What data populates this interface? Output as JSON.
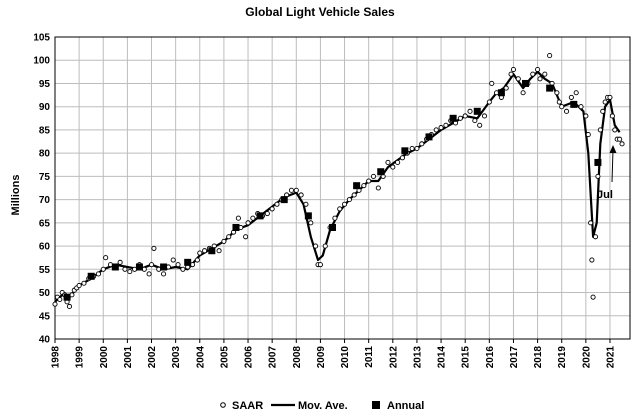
{
  "chart_data": {
    "type": "line",
    "title": "Global Light Vehicle Sales",
    "xlabel": "",
    "ylabel": "Millions",
    "xlim": [
      1998,
      2021.83
    ],
    "ylim": [
      40,
      105
    ],
    "yticks": [
      40,
      45,
      50,
      55,
      60,
      65,
      70,
      75,
      80,
      85,
      90,
      95,
      100,
      105
    ],
    "xticks": [
      1998,
      1999,
      2000,
      2001,
      2002,
      2003,
      2004,
      2005,
      2006,
      2007,
      2008,
      2009,
      2010,
      2011,
      2012,
      2013,
      2014,
      2015,
      2016,
      2017,
      2018,
      2019,
      2020,
      2021
    ],
    "xtick_labels": [
      "1998",
      "1999",
      "2000",
      "2001",
      "2002",
      "2003",
      "2004",
      "2005",
      "2006",
      "2007",
      "2008",
      "2009",
      "2010",
      "2011",
      "2012",
      "2013",
      "2014",
      "2015",
      "2016",
      "2017",
      "2018",
      "2019",
      "2020",
      "2021"
    ],
    "grid": true,
    "legend_position": "bottom",
    "colors": {
      "line": "#000000",
      "grid": "#bdbdbd",
      "marker": "#000000"
    },
    "annotation": {
      "text": "Jul",
      "x": 2021.5,
      "y": 83
    },
    "series": [
      {
        "name": "SAAR",
        "style": "open-circle",
        "points": [
          [
            1998.0,
            47.5
          ],
          [
            1998.1,
            49
          ],
          [
            1998.2,
            48.5
          ],
          [
            1998.3,
            50
          ],
          [
            1998.4,
            49.5
          ],
          [
            1998.5,
            48
          ],
          [
            1998.6,
            47
          ],
          [
            1998.7,
            49.5
          ],
          [
            1998.8,
            50.5
          ],
          [
            1998.9,
            51
          ],
          [
            1999.0,
            51.5
          ],
          [
            1999.2,
            52
          ],
          [
            1999.4,
            53
          ],
          [
            1999.6,
            53.5
          ],
          [
            1999.8,
            54
          ],
          [
            2000.0,
            55
          ],
          [
            2000.1,
            57.5
          ],
          [
            2000.3,
            56
          ],
          [
            2000.5,
            55.5
          ],
          [
            2000.7,
            56.5
          ],
          [
            2000.9,
            55
          ],
          [
            2001.1,
            54.5
          ],
          [
            2001.3,
            55
          ],
          [
            2001.5,
            56
          ],
          [
            2001.7,
            55
          ],
          [
            2001.9,
            54
          ],
          [
            2002.0,
            56
          ],
          [
            2002.1,
            59.5
          ],
          [
            2002.3,
            55
          ],
          [
            2002.5,
            54
          ],
          [
            2002.7,
            55.5
          ],
          [
            2002.9,
            57
          ],
          [
            2003.1,
            56
          ],
          [
            2003.3,
            55
          ],
          [
            2003.5,
            55.5
          ],
          [
            2003.7,
            56
          ],
          [
            2003.9,
            57
          ],
          [
            2004.0,
            58.5
          ],
          [
            2004.2,
            59
          ],
          [
            2004.4,
            59.5
          ],
          [
            2004.6,
            60
          ],
          [
            2004.8,
            59
          ],
          [
            2005.0,
            61
          ],
          [
            2005.2,
            62
          ],
          [
            2005.4,
            63
          ],
          [
            2005.6,
            66
          ],
          [
            2005.7,
            64
          ],
          [
            2005.9,
            62
          ],
          [
            2006.0,
            65
          ],
          [
            2006.2,
            66
          ],
          [
            2006.4,
            67
          ],
          [
            2006.6,
            66.5
          ],
          [
            2006.8,
            67
          ],
          [
            2007.0,
            68
          ],
          [
            2007.2,
            69
          ],
          [
            2007.4,
            70
          ],
          [
            2007.6,
            71
          ],
          [
            2007.8,
            72
          ],
          [
            2008.0,
            72
          ],
          [
            2008.2,
            71
          ],
          [
            2008.4,
            69
          ],
          [
            2008.6,
            65
          ],
          [
            2008.8,
            60
          ],
          [
            2008.9,
            56
          ],
          [
            2009.0,
            56
          ],
          [
            2009.2,
            60
          ],
          [
            2009.4,
            64
          ],
          [
            2009.6,
            66
          ],
          [
            2009.8,
            68
          ],
          [
            2010.0,
            69
          ],
          [
            2010.2,
            70
          ],
          [
            2010.4,
            71
          ],
          [
            2010.6,
            72
          ],
          [
            2010.8,
            73
          ],
          [
            2011.0,
            74
          ],
          [
            2011.2,
            75
          ],
          [
            2011.4,
            72.5
          ],
          [
            2011.6,
            75
          ],
          [
            2011.8,
            78
          ],
          [
            2012.0,
            77
          ],
          [
            2012.2,
            78
          ],
          [
            2012.4,
            79
          ],
          [
            2012.6,
            80
          ],
          [
            2012.8,
            81
          ],
          [
            2013.0,
            81
          ],
          [
            2013.2,
            82
          ],
          [
            2013.4,
            83
          ],
          [
            2013.6,
            84
          ],
          [
            2013.8,
            85
          ],
          [
            2014.0,
            85.5
          ],
          [
            2014.2,
            86
          ],
          [
            2014.4,
            87
          ],
          [
            2014.6,
            86.5
          ],
          [
            2014.8,
            87.5
          ],
          [
            2015.0,
            88
          ],
          [
            2015.2,
            89
          ],
          [
            2015.4,
            87
          ],
          [
            2015.6,
            86
          ],
          [
            2015.8,
            88
          ],
          [
            2016.0,
            91
          ],
          [
            2016.1,
            95
          ],
          [
            2016.3,
            93
          ],
          [
            2016.5,
            92
          ],
          [
            2016.7,
            94
          ],
          [
            2016.9,
            97
          ],
          [
            2017.0,
            98
          ],
          [
            2017.2,
            96
          ],
          [
            2017.4,
            93
          ],
          [
            2017.6,
            95
          ],
          [
            2017.8,
            97
          ],
          [
            2018.0,
            98
          ],
          [
            2018.1,
            96
          ],
          [
            2018.3,
            97
          ],
          [
            2018.5,
            101
          ],
          [
            2018.6,
            95
          ],
          [
            2018.8,
            93
          ],
          [
            2018.9,
            91
          ],
          [
            2019.0,
            90
          ],
          [
            2019.2,
            89
          ],
          [
            2019.4,
            92
          ],
          [
            2019.6,
            93
          ],
          [
            2019.8,
            90
          ],
          [
            2020.0,
            88
          ],
          [
            2020.1,
            84
          ],
          [
            2020.2,
            65
          ],
          [
            2020.25,
            57
          ],
          [
            2020.3,
            49
          ],
          [
            2020.4,
            62
          ],
          [
            2020.5,
            75
          ],
          [
            2020.6,
            85
          ],
          [
            2020.7,
            89
          ],
          [
            2020.8,
            91
          ],
          [
            2020.9,
            92
          ],
          [
            2021.0,
            92
          ],
          [
            2021.1,
            88
          ],
          [
            2021.2,
            85
          ],
          [
            2021.3,
            83
          ],
          [
            2021.4,
            83
          ],
          [
            2021.5,
            82
          ]
        ]
      },
      {
        "name": "Mov. Ave.",
        "style": "line",
        "points": [
          [
            1998.0,
            48
          ],
          [
            1998.3,
            49.5
          ],
          [
            1998.6,
            49
          ],
          [
            1999.0,
            51.5
          ],
          [
            1999.5,
            53
          ],
          [
            2000.0,
            55
          ],
          [
            2000.5,
            56
          ],
          [
            2001.0,
            55.5
          ],
          [
            2001.5,
            55
          ],
          [
            2002.0,
            56
          ],
          [
            2002.5,
            55
          ],
          [
            2003.0,
            55.5
          ],
          [
            2003.5,
            55
          ],
          [
            2004.0,
            58
          ],
          [
            2004.5,
            59.5
          ],
          [
            2005.0,
            61
          ],
          [
            2005.5,
            63.5
          ],
          [
            2006.0,
            64.5
          ],
          [
            2006.5,
            66.5
          ],
          [
            2007.0,
            68.5
          ],
          [
            2007.5,
            70.5
          ],
          [
            2008.0,
            71.5
          ],
          [
            2008.3,
            69
          ],
          [
            2008.6,
            62
          ],
          [
            2008.9,
            57
          ],
          [
            2009.1,
            58
          ],
          [
            2009.4,
            63.5
          ],
          [
            2009.8,
            67.5
          ],
          [
            2010.2,
            70
          ],
          [
            2010.6,
            72
          ],
          [
            2011.0,
            74
          ],
          [
            2011.4,
            74
          ],
          [
            2011.8,
            77
          ],
          [
            2012.2,
            78.5
          ],
          [
            2012.6,
            80
          ],
          [
            2013.0,
            81
          ],
          [
            2013.5,
            83
          ],
          [
            2014.0,
            85
          ],
          [
            2014.5,
            86.5
          ],
          [
            2015.0,
            88
          ],
          [
            2015.5,
            87.5
          ],
          [
            2016.0,
            91
          ],
          [
            2016.3,
            93
          ],
          [
            2016.6,
            94
          ],
          [
            2017.0,
            97
          ],
          [
            2017.4,
            94
          ],
          [
            2017.7,
            96
          ],
          [
            2018.0,
            97.5
          ],
          [
            2018.3,
            96
          ],
          [
            2018.6,
            95
          ],
          [
            2019.0,
            90
          ],
          [
            2019.5,
            91
          ],
          [
            2019.9,
            89
          ],
          [
            2020.1,
            80
          ],
          [
            2020.3,
            62
          ],
          [
            2020.45,
            65
          ],
          [
            2020.6,
            82
          ],
          [
            2020.8,
            90
          ],
          [
            2021.0,
            91.5
          ],
          [
            2021.2,
            86
          ],
          [
            2021.4,
            84.5
          ]
        ]
      },
      {
        "name": "Annual",
        "style": "filled-square",
        "points": [
          [
            1998.5,
            49
          ],
          [
            1999.5,
            53.5
          ],
          [
            2000.5,
            55.5
          ],
          [
            2001.5,
            55.5
          ],
          [
            2002.5,
            55.5
          ],
          [
            2003.5,
            56.5
          ],
          [
            2004.5,
            59
          ],
          [
            2005.5,
            64
          ],
          [
            2006.5,
            66.5
          ],
          [
            2007.5,
            70
          ],
          [
            2008.5,
            66.5
          ],
          [
            2009.5,
            64
          ],
          [
            2010.5,
            73
          ],
          [
            2011.5,
            76
          ],
          [
            2012.5,
            80.5
          ],
          [
            2013.5,
            83.5
          ],
          [
            2014.5,
            87.5
          ],
          [
            2015.5,
            89
          ],
          [
            2016.5,
            93
          ],
          [
            2017.5,
            95
          ],
          [
            2018.5,
            94
          ],
          [
            2019.5,
            90.5
          ],
          [
            2020.5,
            78
          ]
        ]
      }
    ]
  }
}
